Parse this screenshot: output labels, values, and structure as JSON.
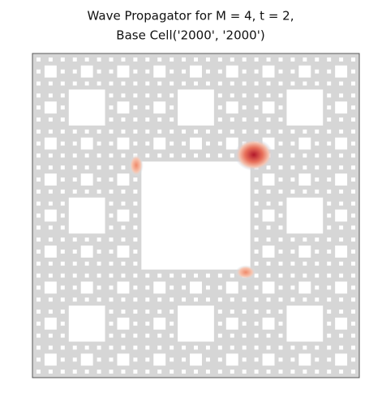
{
  "title": {
    "line1": "Wave Propagator for M = 4, t = 2,",
    "line2": "Base Cell('2000', '2000')"
  }
}
